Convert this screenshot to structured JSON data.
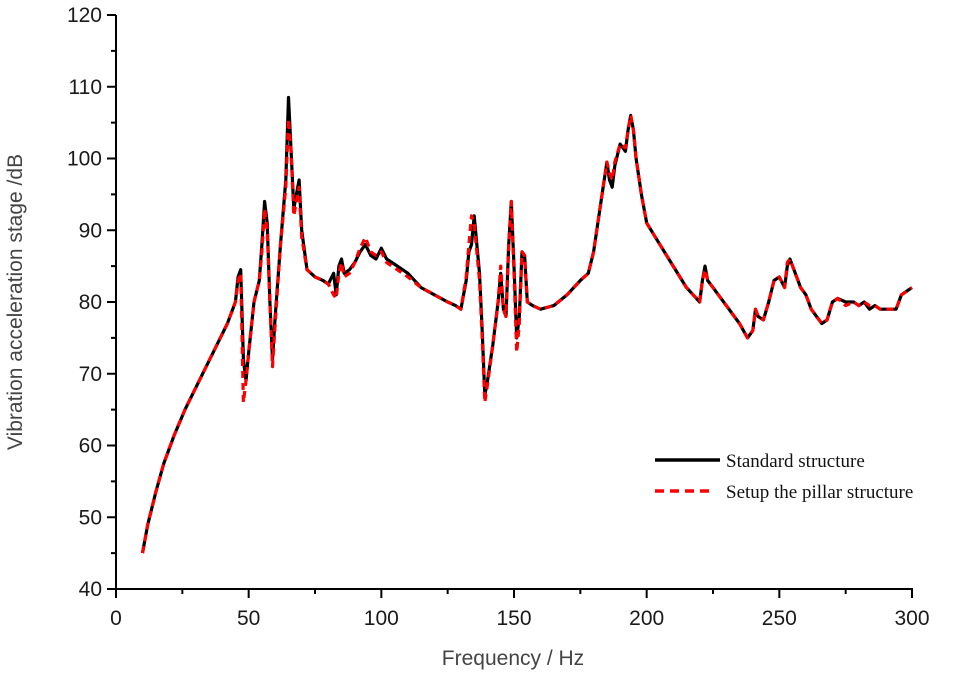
{
  "chart_data": {
    "type": "line",
    "title": "",
    "xlabel": "Frequency / Hz",
    "ylabel": "Vibration acceleration stage /dB",
    "xlim": [
      0,
      300
    ],
    "ylim": [
      40,
      120
    ],
    "x_ticks": [
      0,
      50,
      100,
      150,
      200,
      250,
      300
    ],
    "x_minor_ticks": [
      25,
      75,
      125,
      175,
      225,
      275
    ],
    "y_ticks": [
      40,
      50,
      60,
      70,
      80,
      90,
      100,
      110,
      120
    ],
    "y_minor_ticks": [
      45,
      55,
      65,
      75,
      85,
      95,
      105,
      115
    ],
    "grid": false,
    "legend_position": "lower right",
    "series": [
      {
        "name": "Standard structure",
        "color": "#000000",
        "style": "solid",
        "x": [
          10,
          12,
          15,
          18,
          22,
          26,
          30,
          34,
          38,
          42,
          45,
          46,
          47,
          48,
          49,
          50,
          52,
          54,
          55,
          56,
          57,
          58,
          59,
          60,
          62,
          64,
          65,
          66,
          67,
          68,
          69,
          70,
          72,
          75,
          78,
          80,
          82,
          83,
          84,
          85,
          86,
          88,
          90,
          92,
          94,
          96,
          98,
          100,
          102,
          104,
          106,
          108,
          110,
          115,
          120,
          125,
          128,
          130,
          132,
          133,
          134,
          135,
          137,
          138,
          139,
          140,
          142,
          144,
          145,
          146,
          147,
          148,
          149,
          150,
          151,
          152,
          153,
          154,
          155,
          157,
          160,
          165,
          170,
          175,
          178,
          180,
          182,
          184,
          185,
          186,
          187,
          188,
          190,
          192,
          193,
          194,
          195,
          196,
          198,
          200,
          205,
          210,
          215,
          220,
          221,
          222,
          223,
          225,
          230,
          235,
          238,
          240,
          241,
          242,
          244,
          246,
          248,
          250,
          252,
          253,
          254,
          256,
          258,
          260,
          262,
          264,
          266,
          268,
          270,
          272,
          275,
          278,
          280,
          282,
          284,
          286,
          288,
          290,
          292,
          294,
          296,
          298,
          300
        ],
        "y": [
          45,
          49,
          53.5,
          57.5,
          61.5,
          65,
          68,
          71,
          74,
          77,
          80,
          83.5,
          84.5,
          72,
          69,
          73,
          80,
          83,
          88,
          94,
          91,
          80,
          72,
          78,
          88,
          97,
          108.5,
          101,
          93,
          95,
          97,
          90,
          84.5,
          83.5,
          83,
          82.5,
          84,
          81,
          85,
          86,
          84,
          84.5,
          85.5,
          87,
          88,
          86.5,
          86,
          87.5,
          86,
          85.5,
          85,
          84.5,
          84,
          82,
          81,
          80,
          79.5,
          79,
          83,
          87,
          88,
          92,
          84,
          76,
          67,
          69,
          74,
          80,
          84,
          79,
          78,
          88,
          94,
          85,
          75,
          78,
          87,
          86.5,
          80,
          79.5,
          79,
          79.5,
          81,
          83,
          84,
          87,
          92,
          97,
          99.5,
          97,
          96,
          99,
          102,
          101,
          104,
          106,
          104,
          100,
          95,
          91,
          88,
          85,
          82,
          80,
          83,
          85,
          83,
          82,
          79.5,
          77,
          75,
          76,
          79,
          78,
          77.5,
          80,
          83,
          83.5,
          82,
          85,
          86,
          84,
          82,
          81,
          79,
          78,
          77,
          77.5,
          80,
          80.5,
          80,
          80,
          79.5,
          80,
          79,
          79.5,
          79,
          79,
          79,
          79,
          81,
          81.5,
          82
        ]
      },
      {
        "name": "Setup the pillar structure",
        "color": "#ff0000",
        "style": "dashed",
        "x": [
          10,
          12,
          15,
          18,
          22,
          26,
          30,
          34,
          38,
          42,
          45,
          46,
          47,
          48,
          49,
          50,
          52,
          54,
          55,
          56,
          57,
          58,
          59,
          60,
          62,
          64,
          65,
          66,
          67,
          68,
          69,
          70,
          72,
          75,
          78,
          80,
          82,
          83,
          84,
          85,
          86,
          88,
          90,
          92,
          94,
          96,
          98,
          100,
          102,
          104,
          106,
          108,
          110,
          115,
          120,
          125,
          128,
          130,
          132,
          133,
          134,
          135,
          137,
          138,
          139,
          140,
          142,
          144,
          145,
          146,
          147,
          148,
          149,
          150,
          151,
          152,
          153,
          154,
          155,
          157,
          160,
          165,
          170,
          175,
          178,
          180,
          182,
          184,
          185,
          186,
          187,
          188,
          190,
          192,
          193,
          194,
          195,
          196,
          198,
          200,
          205,
          210,
          215,
          220,
          221,
          222,
          223,
          225,
          230,
          235,
          238,
          240,
          241,
          242,
          244,
          246,
          248,
          250,
          252,
          253,
          254,
          256,
          258,
          260,
          262,
          264,
          266,
          268,
          270,
          272,
          275,
          278,
          280,
          282,
          284,
          286,
          288,
          290,
          292,
          294,
          296,
          298,
          300
        ],
        "y": [
          45,
          49,
          53.5,
          57.5,
          61.5,
          65,
          68,
          71,
          74,
          77,
          80,
          83,
          84,
          66,
          69,
          73,
          80,
          83,
          87,
          93,
          90,
          80,
          71,
          77,
          88,
          96,
          105.5,
          101,
          92,
          94,
          96,
          89,
          84.5,
          83.5,
          83,
          82.5,
          81,
          80.5,
          84,
          85.5,
          83.5,
          84,
          85.5,
          87.5,
          89,
          87,
          86.5,
          87,
          85.5,
          85,
          84.5,
          84,
          83.5,
          82,
          81,
          80,
          79.5,
          79,
          83.5,
          88,
          92,
          91,
          83,
          75,
          66,
          68.5,
          74,
          80,
          85,
          79,
          78,
          88,
          94,
          84,
          73,
          77,
          87,
          86.5,
          80,
          79.5,
          79,
          79.5,
          81,
          83,
          84,
          87,
          92,
          97,
          99.5,
          98,
          97,
          99.5,
          102,
          101.5,
          104,
          106,
          104,
          100,
          95,
          91,
          88,
          85,
          82,
          80,
          83,
          84.5,
          83,
          82,
          79.5,
          77,
          75,
          76,
          79,
          78,
          77.5,
          80,
          83,
          83.5,
          82,
          85.5,
          86,
          84,
          82,
          81,
          79,
          78,
          77,
          77.5,
          80,
          80.5,
          79.5,
          80,
          79.5,
          80,
          79.5,
          79.5,
          79,
          79,
          79,
          79,
          81,
          81.5,
          82
        ]
      }
    ],
    "legend": [
      {
        "label": "Standard structure",
        "color": "#000000",
        "style": "solid"
      },
      {
        "label": "Setup the pillar structure",
        "color": "#ff0000",
        "style": "dashed"
      }
    ]
  }
}
